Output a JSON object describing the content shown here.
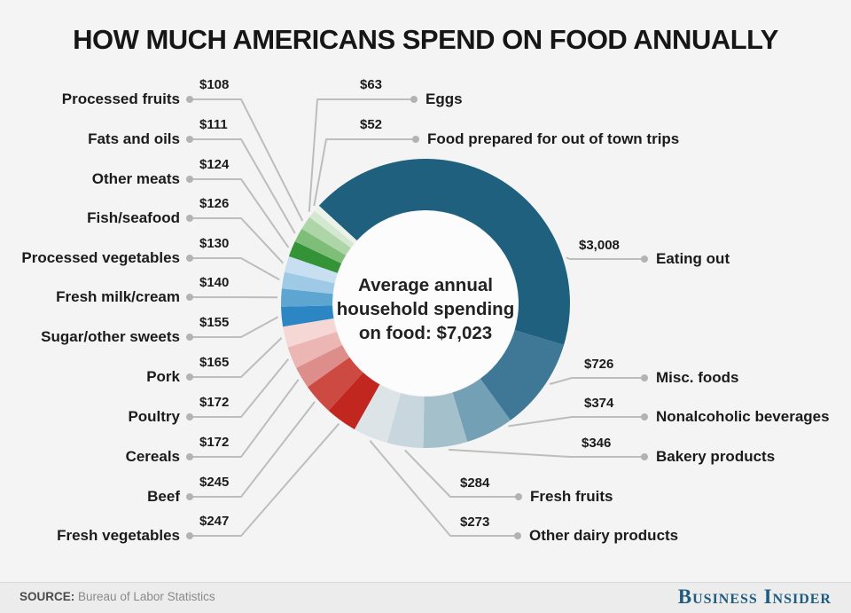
{
  "title": "HOW MUCH AMERICANS SPEND ON FOOD ANNUALLY",
  "center_label": {
    "line1": "Average annual",
    "line2": "household spending",
    "line3_prefix": "on food: ",
    "total": "$7,023"
  },
  "footer": {
    "source_label": "SOURCE:",
    "source_text": "Bureau of Labor Statistics",
    "brand": "Business Insider",
    "brand_color": "#1e5c7e"
  },
  "chart_data": {
    "type": "pie",
    "subtype": "donut",
    "title": "How much Americans spend on food annually",
    "total": 7023,
    "total_label": "$7,023",
    "rotation_deg": -47.5,
    "legend_position": "callout-labels",
    "slices": [
      {
        "label": "Eating out",
        "value": 3008,
        "value_label": "$3,008",
        "color": "#20607f"
      },
      {
        "label": "Misc. foods",
        "value": 726,
        "value_label": "$726",
        "color": "#3f7796"
      },
      {
        "label": "Nonalcoholic beverages",
        "value": 374,
        "value_label": "$374",
        "color": "#73a0b4"
      },
      {
        "label": "Bakery products",
        "value": 346,
        "value_label": "$346",
        "color": "#a4c0cb"
      },
      {
        "label": "Fresh fruits",
        "value": 284,
        "value_label": "$284",
        "color": "#c8d7dd"
      },
      {
        "label": "Other dairy products",
        "value": 273,
        "value_label": "$273",
        "color": "#dce4e8"
      },
      {
        "label": "Fresh vegetables",
        "value": 247,
        "value_label": "$247",
        "color": "#c1271e"
      },
      {
        "label": "Beef",
        "value": 245,
        "value_label": "$245",
        "color": "#cc4a42"
      },
      {
        "label": "Cereals",
        "value": 172,
        "value_label": "$172",
        "color": "#dd8d8a"
      },
      {
        "label": "Poultry",
        "value": 172,
        "value_label": "$172",
        "color": "#ebb6b3"
      },
      {
        "label": "Pork",
        "value": 165,
        "value_label": "$165",
        "color": "#f5d8d6"
      },
      {
        "label": "Sugar/other sweets",
        "value": 155,
        "value_label": "$155",
        "color": "#2b86c3"
      },
      {
        "label": "Fresh milk/cream",
        "value": 140,
        "value_label": "$140",
        "color": "#5ea6d2"
      },
      {
        "label": "Processed vegetables",
        "value": 130,
        "value_label": "$130",
        "color": "#9ecae6"
      },
      {
        "label": "Fish/seafood",
        "value": 126,
        "value_label": "$126",
        "color": "#c7dff0"
      },
      {
        "label": "Other meats",
        "value": 124,
        "value_label": "$124",
        "color": "#349336"
      },
      {
        "label": "Fats and oils",
        "value": 111,
        "value_label": "$111",
        "color": "#7fbe78"
      },
      {
        "label": "Processed fruits",
        "value": 108,
        "value_label": "$108",
        "color": "#aed5a8"
      },
      {
        "label": "Eggs",
        "value": 63,
        "value_label": "$63",
        "color": "#d4e8d1"
      },
      {
        "label": "Food prepared for out of town trips",
        "value": 52,
        "value_label": "$52",
        "color": "#ebf3e9"
      }
    ]
  }
}
